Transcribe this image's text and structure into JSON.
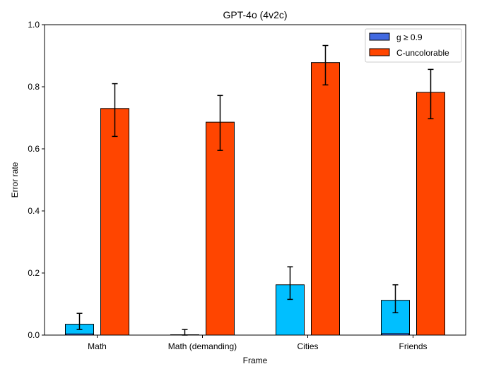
{
  "chart_data": {
    "type": "bar",
    "title": "GPT-4o (4v2c)",
    "xlabel": "Frame",
    "ylabel": "Error rate",
    "ylim": [
      0,
      1.0
    ],
    "yticks": [
      "0.0",
      "0.2",
      "0.4",
      "0.6",
      "0.8",
      "1.0"
    ],
    "categories": [
      "Math",
      "Math (demanding)",
      "Cities",
      "Friends"
    ],
    "series": [
      {
        "name": "g ≥ 0.9",
        "color": "#00bfff",
        "legend_color": "#4169e1",
        "values": [
          0.035,
          0.0,
          0.162,
          0.112
        ],
        "inner_values": [
          0.004,
          0.0,
          0.0,
          0.005
        ],
        "inner_color": "#4169e1",
        "err_low": [
          0.018,
          0.0,
          0.115,
          0.072
        ],
        "err_high": [
          0.07,
          0.018,
          0.22,
          0.162
        ]
      },
      {
        "name": "C-uncolorable",
        "color": "#ff4500",
        "legend_color": "#ff4500",
        "values": [
          0.73,
          0.686,
          0.878,
          0.782
        ],
        "err_low": [
          0.64,
          0.595,
          0.806,
          0.697
        ],
        "err_high": [
          0.81,
          0.772,
          0.933,
          0.856
        ]
      }
    ],
    "grid": false,
    "legend_position": "top-right"
  }
}
